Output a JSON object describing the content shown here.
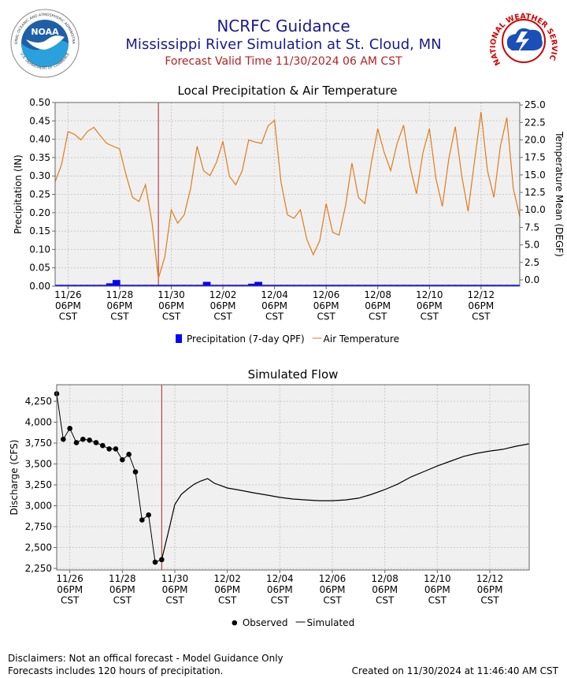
{
  "header": {
    "title": "NCRFC Guidance",
    "subtitle": "Mississippi River Simulation at St. Cloud, MN",
    "valid_time": "Forecast Valid Time 11/30/2024 06 AM CST"
  },
  "logos": {
    "noaa": {
      "abbr": "NOAA",
      "ring_top": "NATIONAL OCEANIC AND ATMOSPHERIC ADMINISTRATION",
      "ring_bottom": "U.S. DEPARTMENT OF COMMERCE"
    },
    "nws": {
      "ring": "NATIONAL WEATHER SERVICE"
    }
  },
  "chart_data": [
    {
      "type": "combo",
      "title": "Local Precipitation & Air Temperature",
      "ylabel": "Precipitation (IN)",
      "y2label": "Temperature Mean (DEGF)",
      "xlim": [
        "2024-11-26T06:00",
        "2024-12-14T06:00"
      ],
      "xticks": [
        {
          "value": "2024-11-26T18:00",
          "label": "11/26\n06PM\nCST"
        },
        {
          "value": "2024-11-28T18:00",
          "label": "11/28\n06PM\nCST"
        },
        {
          "value": "2024-11-30T18:00",
          "label": "11/30\n06PM\nCST"
        },
        {
          "value": "2024-12-02T18:00",
          "label": "12/02\n06PM\nCST"
        },
        {
          "value": "2024-12-04T18:00",
          "label": "12/04\n06PM\nCST"
        },
        {
          "value": "2024-12-06T18:00",
          "label": "12/06\n06PM\nCST"
        },
        {
          "value": "2024-12-08T18:00",
          "label": "12/08\n06PM\nCST"
        },
        {
          "value": "2024-12-10T18:00",
          "label": "12/10\n06PM\nCST"
        },
        {
          "value": "2024-12-12T18:00",
          "label": "12/12\n06PM\nCST"
        }
      ],
      "ylim": [
        0,
        0.5
      ],
      "yticks": [
        {
          "value": 0,
          "label": "0.00"
        },
        {
          "value": 0.05,
          "label": "0.05"
        },
        {
          "value": 0.1,
          "label": "0.10"
        },
        {
          "value": 0.15,
          "label": "0.15"
        },
        {
          "value": 0.2,
          "label": "0.20"
        },
        {
          "value": 0.25,
          "label": "0.25"
        },
        {
          "value": 0.3,
          "label": "0.30"
        },
        {
          "value": 0.35,
          "label": "0.35"
        },
        {
          "value": 0.4,
          "label": "0.40"
        },
        {
          "value": 0.45,
          "label": "0.45"
        },
        {
          "value": 0.5,
          "label": "0.50"
        }
      ],
      "y2lim": [
        -0.9,
        25.35
      ],
      "y2ticks": [
        {
          "value": 0,
          "label": "0.0"
        },
        {
          "value": 2.5,
          "label": "2.5"
        },
        {
          "value": 5,
          "label": "5.0"
        },
        {
          "value": 7.5,
          "label": "7.5"
        },
        {
          "value": 10,
          "label": "10.0"
        },
        {
          "value": 12.5,
          "label": "12.5"
        },
        {
          "value": 15,
          "label": "15.0"
        },
        {
          "value": 17.5,
          "label": "17.5"
        },
        {
          "value": 20,
          "label": "20.0"
        },
        {
          "value": 22.5,
          "label": "22.5"
        },
        {
          "value": 25,
          "label": "25.0"
        }
      ],
      "grid": true,
      "legend": "bottom",
      "marker_x": "2024-11-30T06:00",
      "marker_color": "#b22222",
      "x": [
        "2024-11-26T06:00",
        "2024-11-26T12:00",
        "2024-11-26T18:00",
        "2024-11-27T00:00",
        "2024-11-27T06:00",
        "2024-11-27T12:00",
        "2024-11-27T18:00",
        "2024-11-28T00:00",
        "2024-11-28T06:00",
        "2024-11-28T12:00",
        "2024-11-28T18:00",
        "2024-11-29T00:00",
        "2024-11-29T06:00",
        "2024-11-29T12:00",
        "2024-11-29T18:00",
        "2024-11-30T00:00",
        "2024-11-30T06:00",
        "2024-11-30T12:00",
        "2024-11-30T18:00",
        "2024-12-01T00:00",
        "2024-12-01T06:00",
        "2024-12-01T12:00",
        "2024-12-01T18:00",
        "2024-12-02T00:00",
        "2024-12-02T06:00",
        "2024-12-02T12:00",
        "2024-12-02T18:00",
        "2024-12-03T00:00",
        "2024-12-03T06:00",
        "2024-12-03T12:00",
        "2024-12-03T18:00",
        "2024-12-04T00:00",
        "2024-12-04T06:00",
        "2024-12-04T12:00",
        "2024-12-04T18:00",
        "2024-12-05T00:00",
        "2024-12-05T06:00",
        "2024-12-05T12:00",
        "2024-12-05T18:00",
        "2024-12-06T00:00",
        "2024-12-06T06:00",
        "2024-12-06T12:00",
        "2024-12-06T18:00",
        "2024-12-07T00:00",
        "2024-12-07T06:00",
        "2024-12-07T12:00",
        "2024-12-07T18:00",
        "2024-12-08T00:00",
        "2024-12-08T06:00",
        "2024-12-08T12:00",
        "2024-12-08T18:00",
        "2024-12-09T00:00",
        "2024-12-09T06:00",
        "2024-12-09T12:00",
        "2024-12-09T18:00",
        "2024-12-10T00:00",
        "2024-12-10T06:00",
        "2024-12-10T12:00",
        "2024-12-10T18:00",
        "2024-12-11T00:00",
        "2024-12-11T06:00",
        "2024-12-11T12:00",
        "2024-12-11T18:00",
        "2024-12-12T00:00",
        "2024-12-12T06:00",
        "2024-12-12T12:00",
        "2024-12-12T18:00",
        "2024-12-13T00:00",
        "2024-12-13T06:00",
        "2024-12-13T12:00",
        "2024-12-13T18:00",
        "2024-12-14T00:00",
        "2024-12-14T06:00"
      ],
      "series": [
        {
          "name": "Precipitation (7-day QPF)",
          "type": "bar",
          "color": "#0000ff",
          "values": [
            0,
            0,
            0,
            0,
            0,
            0,
            0,
            0,
            0.004,
            0.013,
            0,
            0,
            0,
            0,
            0,
            0,
            0,
            0,
            0,
            0,
            0,
            0,
            0,
            0.008,
            0,
            0,
            0,
            0,
            0,
            0,
            0.003,
            0.008,
            0,
            0,
            0,
            0,
            0,
            0,
            0,
            0,
            0,
            0,
            0,
            0,
            0,
            0,
            0,
            0,
            0,
            0,
            0,
            0,
            0,
            0,
            0,
            0,
            0,
            0,
            0,
            0,
            0,
            0,
            0,
            0,
            0,
            0,
            0,
            0,
            0,
            0,
            0,
            0,
            0
          ]
        },
        {
          "name": "Air Temperature",
          "type": "line",
          "color": "#e07b1a",
          "axis": "y2",
          "values": [
            14.0,
            16.5,
            21.2,
            20.8,
            20.0,
            21.2,
            21.8,
            20.6,
            19.5,
            19.1,
            18.7,
            15.0,
            11.8,
            11.2,
            13.6,
            8.3,
            0.2,
            3.3,
            10.0,
            8.1,
            9.3,
            13.1,
            19.1,
            15.6,
            14.9,
            16.8,
            19.8,
            14.8,
            13.6,
            15.6,
            20.0,
            19.7,
            19.5,
            22.0,
            22.8,
            14.0,
            9.3,
            8.8,
            10.0,
            5.8,
            3.6,
            5.6,
            10.9,
            6.8,
            6.4,
            10.6,
            16.7,
            11.8,
            10.9,
            16.7,
            21.6,
            18.2,
            15.6,
            19.5,
            22.1,
            16.2,
            12.3,
            18.2,
            21.6,
            14.5,
            10.5,
            17.3,
            21.9,
            14.9,
            9.8,
            17.0,
            24.0,
            15.6,
            11.8,
            19.1,
            23.2,
            13.1,
            9.0
          ]
        }
      ]
    },
    {
      "type": "line",
      "title": "Simulated Flow",
      "ylabel": "Discharge (CFS)",
      "xlim": [
        "2024-11-26T06:00",
        "2024-12-14T06:00"
      ],
      "xticks": [
        {
          "value": "2024-11-26T18:00",
          "label": "11/26\n06PM\nCST"
        },
        {
          "value": "2024-11-28T18:00",
          "label": "11/28\n06PM\nCST"
        },
        {
          "value": "2024-11-30T18:00",
          "label": "11/30\n06PM\nCST"
        },
        {
          "value": "2024-12-02T18:00",
          "label": "12/02\n06PM\nCST"
        },
        {
          "value": "2024-12-04T18:00",
          "label": "12/04\n06PM\nCST"
        },
        {
          "value": "2024-12-06T18:00",
          "label": "12/06\n06PM\nCST"
        },
        {
          "value": "2024-12-08T18:00",
          "label": "12/08\n06PM\nCST"
        },
        {
          "value": "2024-12-10T18:00",
          "label": "12/10\n06PM\nCST"
        },
        {
          "value": "2024-12-12T18:00",
          "label": "12/12\n06PM\nCST"
        }
      ],
      "ylim": [
        2231,
        4448
      ],
      "yticks": [
        {
          "value": 2250,
          "label": "2,250"
        },
        {
          "value": 2500,
          "label": "2,500"
        },
        {
          "value": 2750,
          "label": "2,750"
        },
        {
          "value": 3000,
          "label": "3,000"
        },
        {
          "value": 3250,
          "label": "3,250"
        },
        {
          "value": 3500,
          "label": "3,500"
        },
        {
          "value": 3750,
          "label": "3,750"
        },
        {
          "value": 4000,
          "label": "4,000"
        },
        {
          "value": 4250,
          "label": "4,250"
        }
      ],
      "grid": true,
      "legend": "bottom",
      "marker_x": "2024-11-30T06:00",
      "marker_color": "#b22222",
      "series": [
        {
          "name": "Observed",
          "type": "scatter",
          "color": "#000000",
          "x": [
            "2024-11-26T06:00",
            "2024-11-26T12:00",
            "2024-11-26T18:00",
            "2024-11-27T00:00",
            "2024-11-27T06:00",
            "2024-11-27T12:00",
            "2024-11-27T18:00",
            "2024-11-28T00:00",
            "2024-11-28T06:00",
            "2024-11-28T12:00",
            "2024-11-28T18:00",
            "2024-11-29T00:00",
            "2024-11-29T06:00",
            "2024-11-29T12:00",
            "2024-11-29T18:00",
            "2024-11-30T00:00",
            "2024-11-30T06:00"
          ],
          "values": [
            4340,
            3795,
            3925,
            3755,
            3795,
            3785,
            3755,
            3720,
            3680,
            3680,
            3550,
            3615,
            3405,
            2830,
            2890,
            2325,
            2355
          ]
        },
        {
          "name": "Simulated",
          "type": "line",
          "color": "#000000",
          "x": [
            "2024-11-30T06:00",
            "2024-11-30T12:00",
            "2024-11-30T18:00",
            "2024-12-01T00:00",
            "2024-12-01T06:00",
            "2024-12-01T12:00",
            "2024-12-01T18:00",
            "2024-12-02T00:00",
            "2024-12-02T06:00",
            "2024-12-02T18:00",
            "2024-12-03T06:00",
            "2024-12-03T18:00",
            "2024-12-04T06:00",
            "2024-12-04T18:00",
            "2024-12-05T06:00",
            "2024-12-05T18:00",
            "2024-12-06T06:00",
            "2024-12-06T18:00",
            "2024-12-07T06:00",
            "2024-12-07T18:00",
            "2024-12-08T06:00",
            "2024-12-08T18:00",
            "2024-12-09T06:00",
            "2024-12-09T18:00",
            "2024-12-10T06:00",
            "2024-12-10T18:00",
            "2024-12-11T06:00",
            "2024-12-11T18:00",
            "2024-12-12T06:00",
            "2024-12-12T18:00",
            "2024-12-13T06:00",
            "2024-12-13T18:00",
            "2024-12-14T06:00"
          ],
          "values": [
            2355,
            2680,
            3015,
            3137,
            3203,
            3260,
            3297,
            3325,
            3270,
            3212,
            3185,
            3155,
            3128,
            3100,
            3080,
            3070,
            3060,
            3060,
            3070,
            3090,
            3137,
            3193,
            3260,
            3345,
            3410,
            3475,
            3533,
            3590,
            3627,
            3655,
            3675,
            3712,
            3740
          ]
        }
      ]
    }
  ],
  "footer": {
    "disclaimer": "Disclaimers: Not an offical forecast - Model Guidance Only",
    "precip_note": "Forecasts includes 120 hours of precipitation.",
    "created": "Created on 11/30/2024 at 11:46:40 AM CST"
  }
}
